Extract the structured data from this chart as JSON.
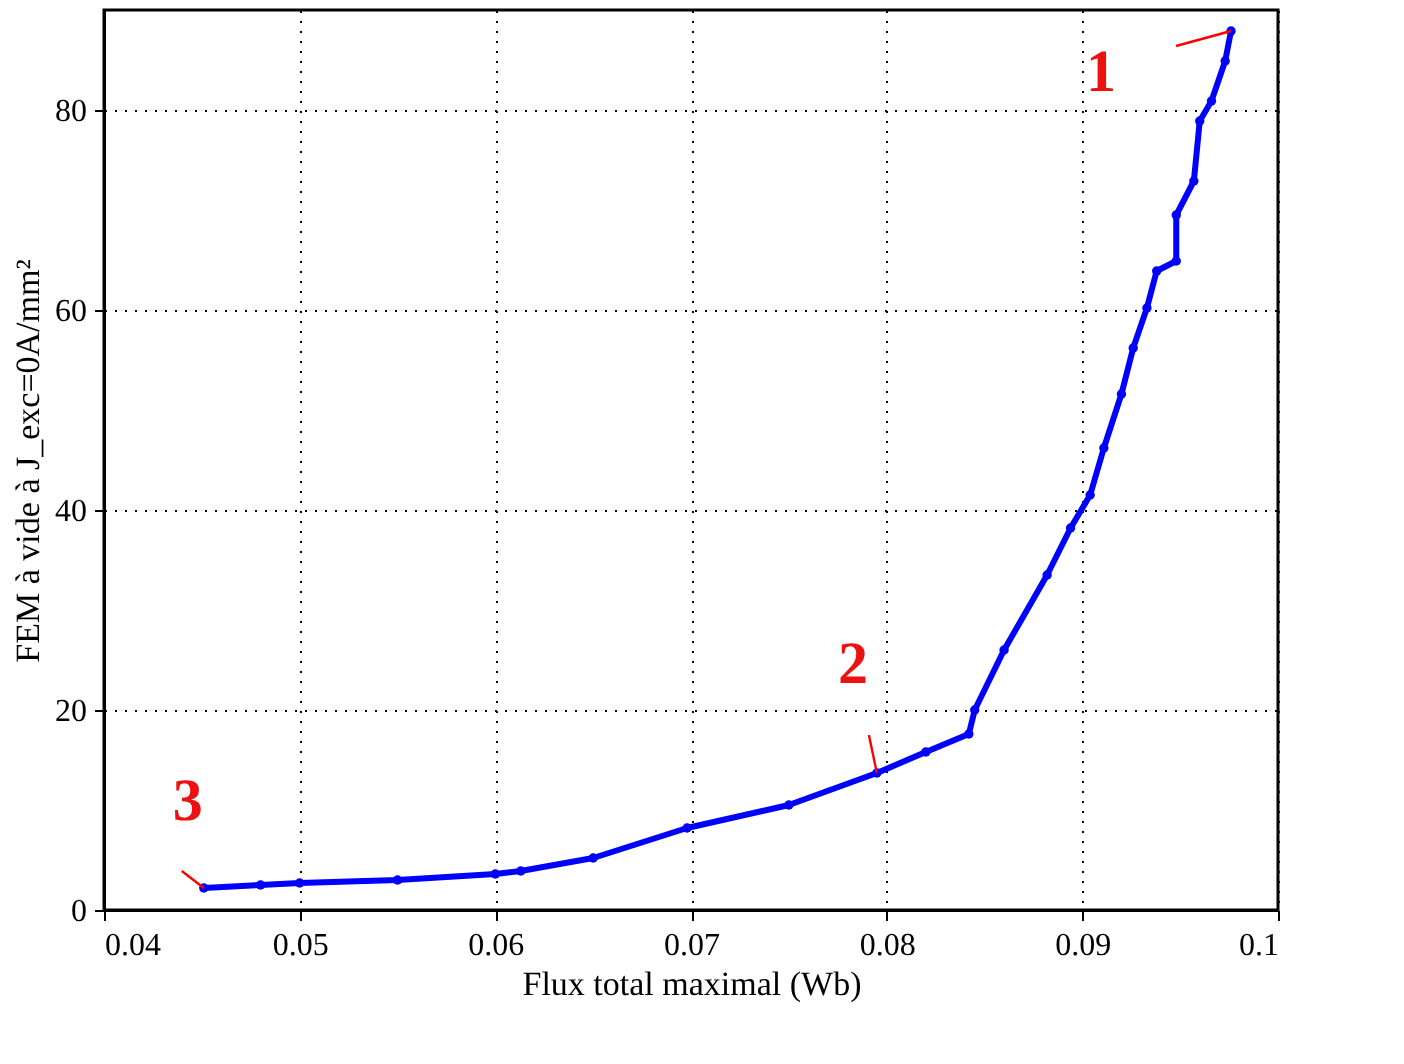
{
  "chart_data": {
    "type": "line",
    "xlabel": "Flux total maximal (Wb)",
    "ylabel": "FEM à vide à J_exc=0A/mm²",
    "x": [
      0.0451,
      0.048,
      0.05,
      0.055,
      0.06,
      0.0613,
      0.065,
      0.0698,
      0.075,
      0.0795,
      0.082,
      0.0842,
      0.0845,
      0.086,
      0.0882,
      0.0894,
      0.0904,
      0.0911,
      0.092,
      0.0926,
      0.0933,
      0.0938,
      0.0948,
      0.0948,
      0.0957,
      0.096,
      0.0966,
      0.0973,
      0.0976
    ],
    "series": [
      {
        "color": "#0000ff",
        "values": [
          2.2,
          2.5,
          2.7,
          3.0,
          3.6,
          3.9,
          5.2,
          8.2,
          10.5,
          13.7,
          15.8,
          17.6,
          20.0,
          26.0,
          33.5,
          38.2,
          41.5,
          46.2,
          51.6,
          56.2,
          60.2,
          63.9,
          64.9,
          69.5,
          72.9,
          78.9,
          80.9,
          84.9,
          87.9
        ]
      }
    ],
    "xlim": [
      0.04,
      0.1
    ],
    "xticks": [
      {
        "value": 0.04,
        "label": "0.04"
      },
      {
        "value": 0.05,
        "label": "0.05"
      },
      {
        "value": 0.06,
        "label": "0.06"
      },
      {
        "value": 0.07,
        "label": "0.07"
      },
      {
        "value": 0.08,
        "label": "0.08"
      },
      {
        "value": 0.09,
        "label": "0.09"
      },
      {
        "value": 0.1,
        "label": "0.1"
      }
    ],
    "ylim": [
      0,
      90
    ],
    "yticks": [
      0,
      20,
      40,
      60,
      80
    ],
    "grid": true,
    "marker": "circle",
    "line_style": "solid",
    "annotations": [
      {
        "text": "1",
        "x": 0.0976,
        "y": 87.9
      },
      {
        "text": "2",
        "x": 0.0795,
        "y": 13.7
      },
      {
        "text": "3",
        "x": 0.0451,
        "y": 2.2
      }
    ]
  }
}
